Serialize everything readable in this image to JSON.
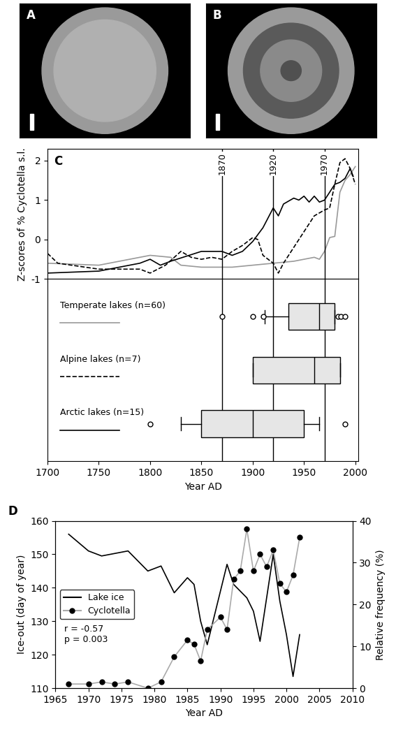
{
  "images": [
    {
      "label": "A"
    },
    {
      "label": "B"
    }
  ],
  "chart_data": [
    {
      "type": "line",
      "panel_label": "C",
      "y_label": "Z-scores of % Cyclotella s.l.",
      "x_label": "Year AD",
      "xlim": [
        1700,
        2003
      ],
      "xticks": [
        1700,
        1750,
        1800,
        1850,
        1900,
        1950,
        2000
      ],
      "ylim": [
        -1,
        2.3
      ],
      "yticks": [
        -1,
        0,
        1,
        2
      ],
      "vlines": [
        1870,
        1920,
        1970
      ],
      "series": [
        {
          "name": "Temperate lakes (n=60)",
          "color": "#999999",
          "line_style": "solid",
          "x": [
            1700,
            1750,
            1790,
            1800,
            1820,
            1830,
            1850,
            1880,
            1900,
            1920,
            1940,
            1950,
            1960,
            1965,
            1970,
            1975,
            1980,
            1985,
            1990,
            1995,
            2000
          ],
          "values": [
            -0.6,
            -0.65,
            -0.45,
            -0.4,
            -0.45,
            -0.65,
            -0.7,
            -0.7,
            -0.65,
            -0.6,
            -0.55,
            -0.5,
            -0.45,
            -0.5,
            -0.3,
            0.05,
            0.08,
            1.2,
            1.5,
            1.65,
            1.85
          ],
          "box": {
            "whislo": 1912,
            "q1": 1935,
            "median": 1965,
            "q3": 1980,
            "whishi": 1980,
            "fliers": [
              1870,
              1900,
              1910,
              1983,
              1986,
              1990
            ]
          }
        },
        {
          "name": "Alpine lakes (n=7)",
          "color": "#000000",
          "line_style": "dashed",
          "x": [
            1700,
            1710,
            1750,
            1790,
            1800,
            1815,
            1830,
            1840,
            1850,
            1860,
            1870,
            1880,
            1890,
            1900,
            1905,
            1910,
            1920,
            1925,
            1930,
            1940,
            1950,
            1960,
            1970,
            1975,
            1980,
            1985,
            1990,
            1995,
            2000
          ],
          "values": [
            -0.35,
            -0.6,
            -0.75,
            -0.75,
            -0.85,
            -0.65,
            -0.3,
            -0.45,
            -0.5,
            -0.45,
            -0.5,
            -0.3,
            -0.15,
            0.05,
            0.0,
            -0.4,
            -0.6,
            -0.85,
            -0.6,
            -0.2,
            0.2,
            0.6,
            0.75,
            0.8,
            1.4,
            1.95,
            2.05,
            1.8,
            1.4
          ],
          "box": {
            "whislo": 1900,
            "q1": 1900,
            "median": 1960,
            "q3": 1985,
            "whishi": 1985,
            "fliers": []
          }
        },
        {
          "name": "Arctic lakes (n=15)",
          "color": "#000000",
          "line_style": "solid",
          "x": [
            1700,
            1750,
            1790,
            1800,
            1810,
            1820,
            1850,
            1870,
            1880,
            1890,
            1900,
            1910,
            1920,
            1925,
            1930,
            1940,
            1945,
            1950,
            1955,
            1960,
            1965,
            1970,
            1975,
            1980,
            1985,
            1990,
            1995,
            1998
          ],
          "values": [
            -0.85,
            -0.8,
            -0.6,
            -0.5,
            -0.65,
            -0.55,
            -0.3,
            -0.3,
            -0.4,
            -0.3,
            -0.05,
            0.3,
            0.8,
            0.6,
            0.9,
            1.05,
            1.0,
            1.1,
            0.95,
            1.1,
            0.95,
            1.0,
            1.2,
            1.4,
            1.45,
            1.55,
            1.8,
            1.6
          ],
          "box": {
            "whislo": 1830,
            "q1": 1850,
            "median": 1900,
            "q3": 1950,
            "whishi": 1965,
            "fliers": [
              1800,
              1990
            ]
          }
        }
      ]
    },
    {
      "type": "line",
      "panel_label": "D",
      "x_label": "Year AD",
      "y_label": "Ice-out (day of year)",
      "y2_label": "Relative frequency (%)",
      "xlim": [
        1965,
        2010
      ],
      "xticks": [
        1965,
        1970,
        1975,
        1980,
        1985,
        1990,
        1995,
        2000,
        2005,
        2010
      ],
      "ylim": [
        110,
        160
      ],
      "yticks": [
        110,
        120,
        130,
        140,
        150,
        160
      ],
      "y2lim": [
        0,
        40
      ],
      "y2ticks": [
        0,
        10,
        20,
        30,
        40
      ],
      "legend": "center left",
      "annotations": [
        "r = -0.57",
        "p = 0.003"
      ],
      "series": [
        {
          "name": "Lake ice",
          "color": "#000000",
          "line_style": "solid",
          "marker": "none",
          "axis": "y",
          "x": [
            1967,
            1970,
            1972,
            1976,
            1979,
            1981,
            1983,
            1985,
            1986,
            1987,
            1988,
            1989,
            1990,
            1991,
            1992,
            1994,
            1995,
            1996,
            1998,
            1999,
            2000,
            2001,
            2002
          ],
          "values": [
            156,
            151,
            149.5,
            151,
            145,
            146.5,
            138.5,
            143,
            141,
            130,
            123,
            131,
            139,
            147,
            141,
            137,
            133,
            124,
            150,
            136,
            126,
            113.5,
            126
          ]
        },
        {
          "name": "Cyclotella",
          "color": "#aaaaaa",
          "line_style": "solid",
          "marker": "o",
          "axis": "y2",
          "x": [
            1967,
            1970,
            1972,
            1974,
            1976,
            1979,
            1981,
            1983,
            1985,
            1986,
            1987,
            1988,
            1990,
            1991,
            1992,
            1993,
            1994,
            1995,
            1996,
            1997,
            1998,
            1999,
            2000,
            2001,
            2002
          ],
          "values": [
            1,
            1,
            1.5,
            1,
            1.5,
            0,
            1.5,
            7.5,
            11.5,
            10.5,
            6.5,
            14,
            17,
            14,
            26,
            28,
            38,
            28,
            32,
            29,
            33,
            25,
            23,
            27,
            36
          ]
        }
      ]
    }
  ]
}
